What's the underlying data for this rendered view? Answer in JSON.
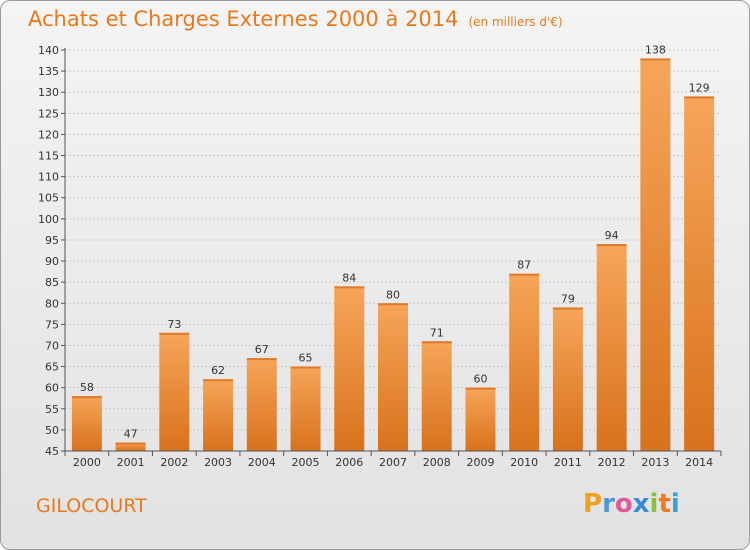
{
  "header": {
    "title": "Achats et Charges Externes 2000 à 2014",
    "unit": "(en milliers d'€)"
  },
  "footer": {
    "commune": "GILOCOURT",
    "logo_letters": [
      "P",
      "r",
      "o",
      "x",
      "i",
      "t",
      "i"
    ],
    "logo_colors": [
      "#f0a020",
      "#4a9ad8",
      "#e05a9a",
      "#3a8ad8",
      "#8ac040",
      "#f07a20",
      "#3aa0d8"
    ]
  },
  "chart_data": {
    "type": "bar",
    "title": "Achats et Charges Externes 2000 à 2014",
    "subtitle": "(en milliers d'€)",
    "categories": [
      "2000",
      "2001",
      "2002",
      "2003",
      "2004",
      "2005",
      "2006",
      "2007",
      "2008",
      "2009",
      "2010",
      "2011",
      "2012",
      "2013",
      "2014"
    ],
    "values": [
      58,
      47,
      73,
      62,
      67,
      65,
      84,
      80,
      71,
      60,
      87,
      79,
      94,
      138,
      129
    ],
    "xlabel": "",
    "ylabel": "",
    "ylim": [
      45,
      140
    ],
    "yticks": [
      45,
      50,
      55,
      60,
      65,
      70,
      75,
      80,
      85,
      90,
      95,
      100,
      105,
      110,
      115,
      120,
      125,
      130,
      135,
      140
    ],
    "grid": true,
    "bar_color_top": "#f6a55a",
    "bar_color_bottom": "#d8721c"
  }
}
